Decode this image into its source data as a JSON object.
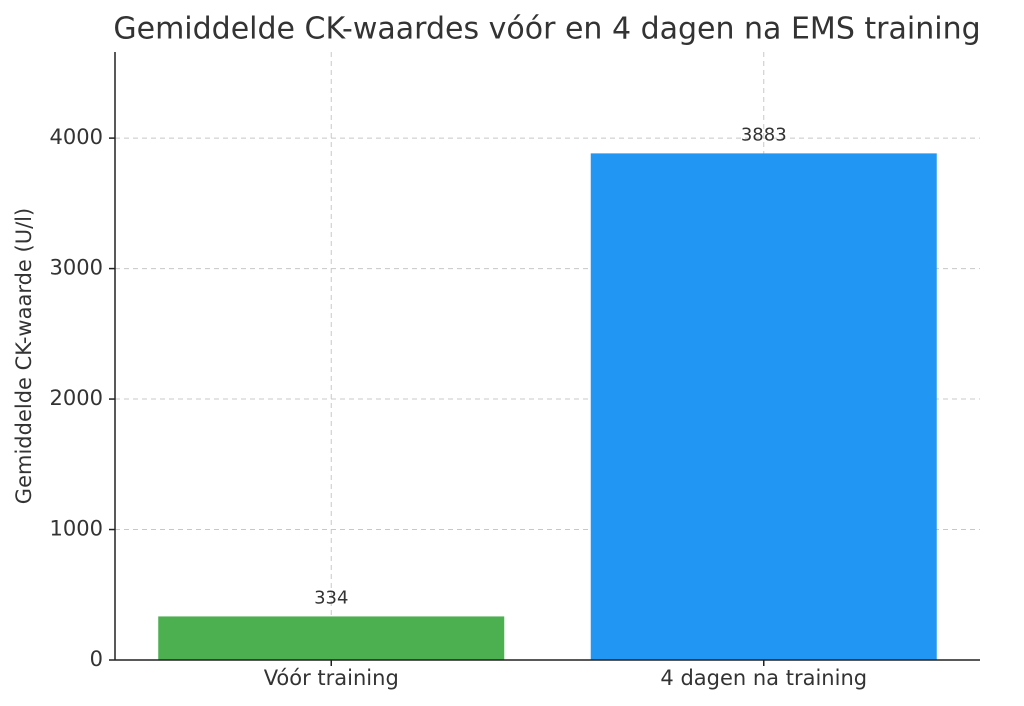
{
  "chart_data": {
    "type": "bar",
    "title": "Gemiddelde CK-waardes vóór en 4 dagen na EMS training",
    "y_label": "Gemiddelde CK-waarde (U/l)",
    "categories": [
      "Vóór training",
      "4 dagen na training"
    ],
    "values": [
      334,
      3883
    ],
    "colors": [
      "#4caf50",
      "#2196f3"
    ],
    "ylim": [
      0,
      4660
    ],
    "yticks": [
      0,
      1000,
      2000,
      3000,
      4000
    ],
    "grid": true
  }
}
